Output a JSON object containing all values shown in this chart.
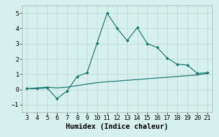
{
  "x": [
    3,
    4,
    5,
    6,
    7,
    8,
    9,
    10,
    11,
    12,
    13,
    14,
    15,
    16,
    17,
    18,
    19,
    20,
    21
  ],
  "y_main": [
    0.05,
    0.05,
    0.1,
    -0.6,
    -0.1,
    0.85,
    1.1,
    3.05,
    5.0,
    4.0,
    3.2,
    4.05,
    3.0,
    2.75,
    2.05,
    1.65,
    1.6,
    1.05,
    1.1
  ],
  "y_smooth": [
    0.05,
    0.1,
    0.15,
    0.1,
    0.15,
    0.25,
    0.35,
    0.45,
    0.5,
    0.55,
    0.6,
    0.65,
    0.7,
    0.75,
    0.8,
    0.85,
    0.9,
    0.95,
    1.05
  ],
  "line_color": "#1a7a6e",
  "bg_color": "#d6f0ed",
  "grid_color": "#c0ddd8",
  "xlabel": "Humidex (Indice chaleur)",
  "ylim": [
    -1.5,
    5.5
  ],
  "yticks": [
    -1,
    0,
    1,
    2,
    3,
    4,
    5
  ],
  "xlim": [
    2.5,
    21.5
  ],
  "xticks": [
    3,
    4,
    5,
    6,
    7,
    8,
    9,
    10,
    11,
    12,
    13,
    14,
    15,
    16,
    17,
    18,
    19,
    20,
    21
  ],
  "xlabel_fontsize": 7.5,
  "tick_fontsize": 6.5
}
